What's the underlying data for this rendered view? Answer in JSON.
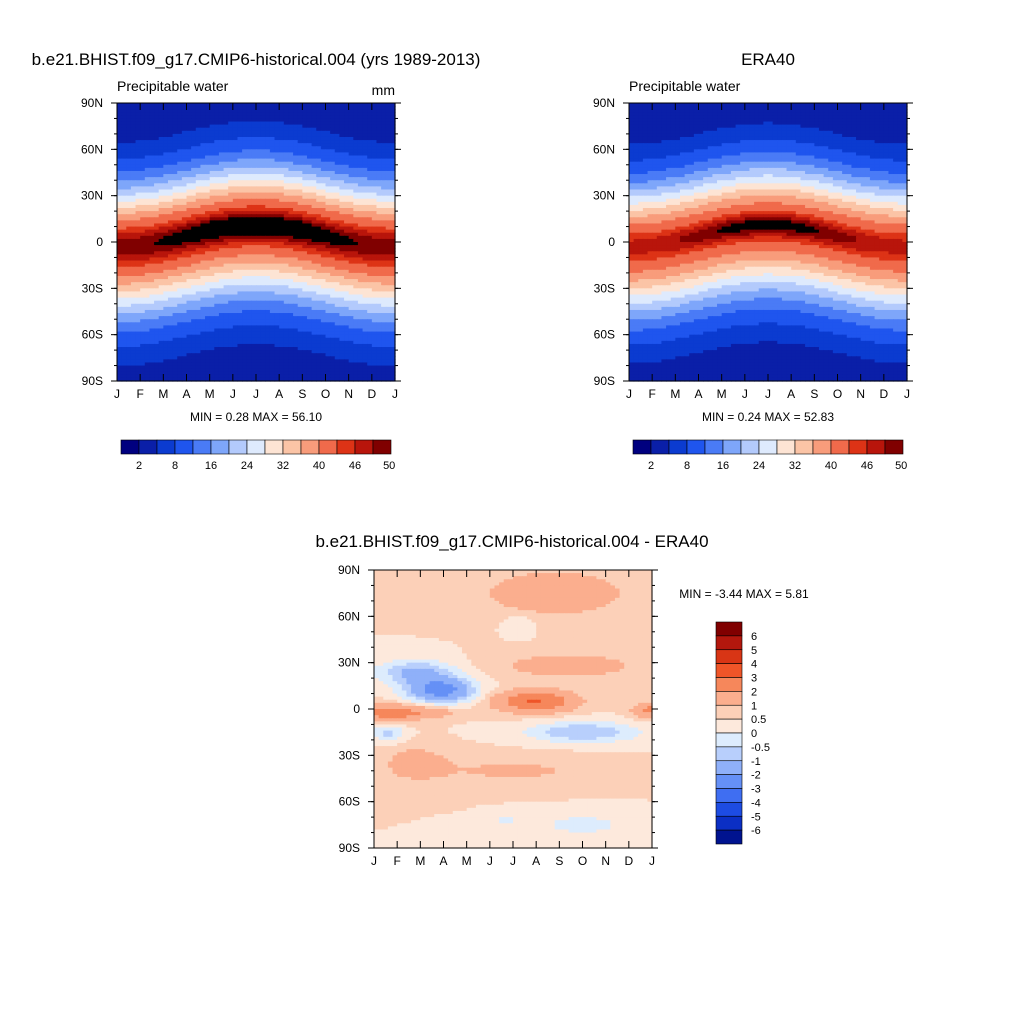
{
  "figure": {
    "panels": [
      {
        "id": "model",
        "title": "b.e21.BHIST.f09_g17.CMIP6-historical.004 (yrs 1989-2013)",
        "left_label": "Precipitable water",
        "right_label": "mm",
        "stats": "MIN =   0.28 MAX =  56.10"
      },
      {
        "id": "obs",
        "title": "ERA40",
        "left_label": "Precipitable water",
        "right_label": "",
        "stats": "MIN =   0.24 MAX =  52.83"
      },
      {
        "id": "diff",
        "title": "b.e21.BHIST.f09_g17.CMIP6-historical.004 - ERA40",
        "left_label": "",
        "right_label": "",
        "stats": "MIN =  -3.44 MAX =   5.81"
      }
    ],
    "colorbars": {
      "abs": {
        "orientation": "horizontal",
        "colors": [
          "#00007f",
          "#0a1fa8",
          "#0b3bd0",
          "#1f55ee",
          "#4a7bf6",
          "#7ea6fa",
          "#b3cafc",
          "#deeafd",
          "#fde4d4",
          "#fbc4a6",
          "#f89c7b",
          "#f06a4b",
          "#dd3316",
          "#b8150b",
          "#800000"
        ],
        "labels": [
          "2",
          "8",
          "16",
          "24",
          "32",
          "40",
          "46",
          "50"
        ]
      },
      "diff": {
        "orientation": "vertical",
        "colors": [
          "#800000",
          "#b3170d",
          "#d83515",
          "#ef5528",
          "#f6875b",
          "#fbae8e",
          "#fcd0b8",
          "#fde9dc",
          "#ddecfd",
          "#b8cffc",
          "#8fb0f9",
          "#6590f6",
          "#3f6ef2",
          "#1d4ce3",
          "#0b2fc4",
          "#00138f"
        ],
        "labels": [
          "6",
          "5",
          "4",
          "3",
          "2",
          "1",
          "0.5",
          "0",
          "-0.5",
          "-1",
          "-2",
          "-3",
          "-4",
          "-5",
          "-6"
        ]
      }
    }
  },
  "chart_data": [
    {
      "type": "heatmap",
      "title": "b.e21.BHIST.f09_g17.CMIP6-historical.004 (yrs 1989-2013)",
      "variable": "Precipitable water",
      "units": "mm",
      "x_ticks": [
        "J",
        "F",
        "M",
        "A",
        "M",
        "J",
        "J",
        "A",
        "S",
        "O",
        "N",
        "D",
        "J"
      ],
      "y_ticks": [
        "90N",
        "60N",
        "30N",
        "0",
        "30S",
        "60S",
        "90S"
      ],
      "ylim": [
        -90,
        90
      ],
      "color_levels": [
        2,
        5,
        8,
        12,
        16,
        20,
        24,
        28,
        32,
        36,
        40,
        44,
        46,
        48,
        50
      ],
      "min": 0.28,
      "max": 56.1
    },
    {
      "type": "heatmap",
      "title": "ERA40",
      "variable": "Precipitable water",
      "x_ticks": [
        "J",
        "F",
        "M",
        "A",
        "M",
        "J",
        "J",
        "A",
        "S",
        "O",
        "N",
        "D",
        "J"
      ],
      "y_ticks": [
        "90N",
        "60N",
        "30N",
        "0",
        "30S",
        "60S",
        "90S"
      ],
      "ylim": [
        -90,
        90
      ],
      "color_levels": [
        2,
        5,
        8,
        12,
        16,
        20,
        24,
        28,
        32,
        36,
        40,
        44,
        46,
        48,
        50
      ],
      "min": 0.24,
      "max": 52.83
    },
    {
      "type": "heatmap",
      "title": "b.e21.BHIST.f09_g17.CMIP6-historical.004 - ERA40",
      "x_ticks": [
        "J",
        "F",
        "M",
        "A",
        "M",
        "J",
        "J",
        "A",
        "S",
        "O",
        "N",
        "D",
        "J"
      ],
      "y_ticks": [
        "90N",
        "60N",
        "30N",
        "0",
        "30S",
        "60S",
        "90S"
      ],
      "ylim": [
        -90,
        90
      ],
      "color_levels": [
        -6,
        -5,
        -4,
        -3,
        -2,
        -1,
        -0.5,
        0,
        0.5,
        1,
        2,
        3,
        4,
        5,
        6
      ],
      "min": -3.44,
      "max": 5.81
    }
  ]
}
